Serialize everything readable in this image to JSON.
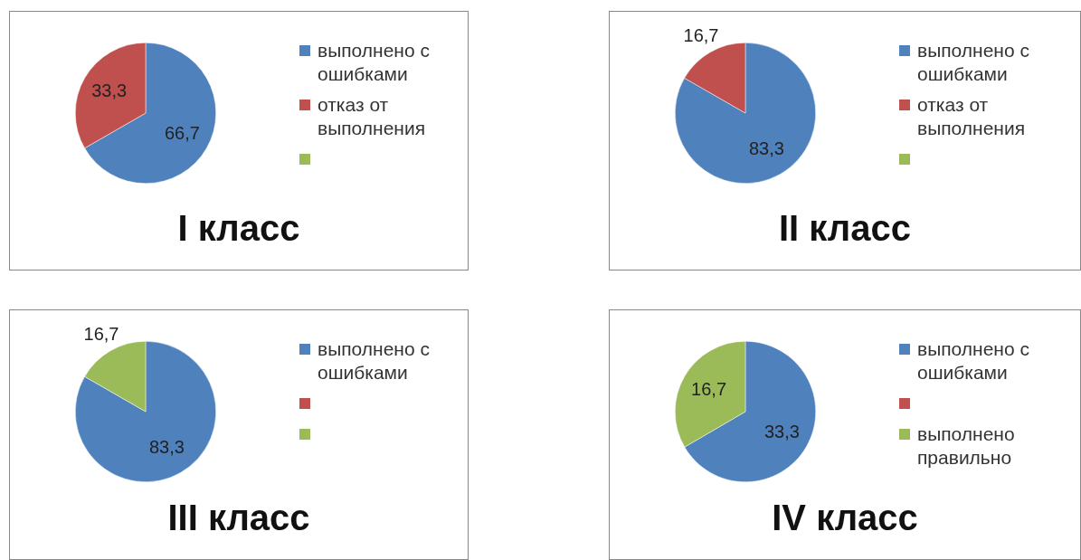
{
  "chart_data": [
    {
      "type": "pie",
      "title": "I класс",
      "categories": [
        "выполнено с ошибками",
        "отказ от выполнения",
        null
      ],
      "values": [
        66.7,
        33.3,
        null
      ],
      "colors": [
        "#4f81bd",
        "#c0504d",
        "#9bbb59"
      ],
      "value_labels": [
        "66,7",
        "33,3",
        null
      ],
      "legend": "right"
    },
    {
      "type": "pie",
      "title": "II класс",
      "categories": [
        "выполнено с ошибками",
        "отказ от выполнения",
        null
      ],
      "values": [
        83.3,
        16.7,
        null
      ],
      "colors": [
        "#4f81bd",
        "#c0504d",
        "#9bbb59"
      ],
      "value_labels": [
        "83,3",
        "16,7",
        null
      ],
      "legend": "right"
    },
    {
      "type": "pie",
      "title": "III класс",
      "categories": [
        "выполнено с ошибками",
        null,
        null
      ],
      "values": [
        83.3,
        null,
        16.7
      ],
      "colors": [
        "#4f81bd",
        "#c0504d",
        "#9bbb59"
      ],
      "value_labels": [
        "83,3",
        null,
        "16,7"
      ],
      "legend": "right"
    },
    {
      "type": "pie",
      "title": "IV класс",
      "categories": [
        "выполнено с ошибками",
        null,
        "выполнено правильно"
      ],
      "values": [
        33.3,
        null,
        16.7
      ],
      "colors": [
        "#4f81bd",
        "#c0504d",
        "#9bbb59"
      ],
      "value_labels": [
        "33,3",
        null,
        "16,7"
      ],
      "legend": "right"
    }
  ]
}
